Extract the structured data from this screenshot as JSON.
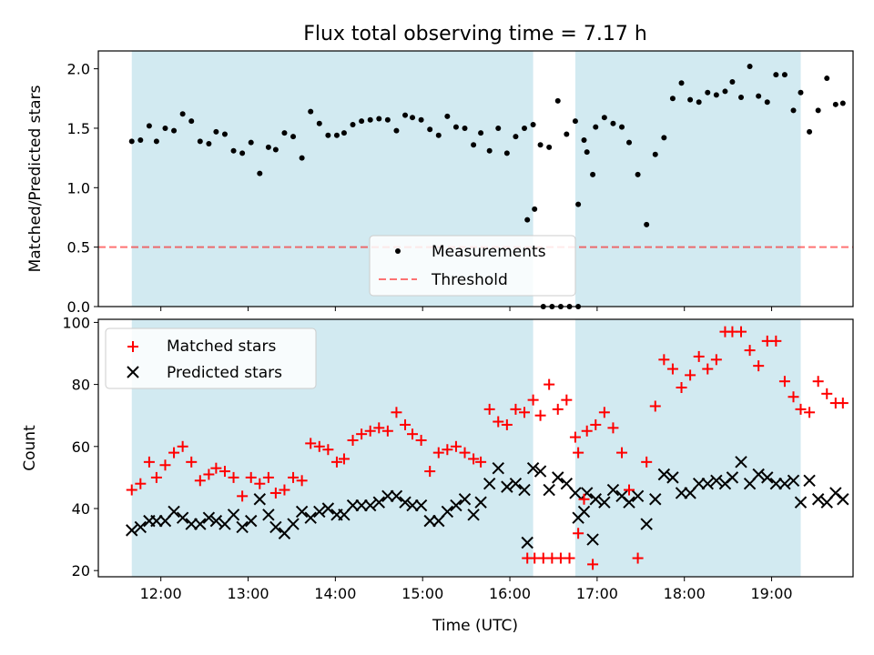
{
  "title": "Flux total observing time = 7.17 h",
  "colors": {
    "shade": "#add8e6",
    "threshold": "#ff0000",
    "measurement": "#000000",
    "matched": "#ff0000",
    "predicted": "#000000"
  },
  "chart_data": [
    {
      "type": "scatter",
      "panel": "top",
      "ylabel": "Matched/Predicted stars",
      "ylim": [
        0,
        2.15
      ],
      "yticks": [
        0.0,
        0.5,
        1.0,
        1.5,
        2.0
      ],
      "ytick_labels": [
        "0.0",
        "0.5",
        "1.0",
        "1.5",
        "2.0"
      ],
      "legend_placement": "lower-center",
      "legend": [
        "Measurements",
        "Threshold"
      ],
      "threshold": 0.5,
      "shaded_intervals": [
        [
          "11:40",
          "16:16"
        ],
        [
          "16:45",
          "19:20"
        ]
      ],
      "series": [
        {
          "name": "Measurements",
          "marker": "dot",
          "points": [
            [
              "11:40",
              1.39
            ],
            [
              "11:46",
              1.4
            ],
            [
              "11:52",
              1.52
            ],
            [
              "11:57",
              1.39
            ],
            [
              "12:03",
              1.5
            ],
            [
              "12:09",
              1.48
            ],
            [
              "12:15",
              1.62
            ],
            [
              "12:21",
              1.56
            ],
            [
              "12:27",
              1.39
            ],
            [
              "12:33",
              1.37
            ],
            [
              "12:38",
              1.47
            ],
            [
              "12:44",
              1.45
            ],
            [
              "12:50",
              1.31
            ],
            [
              "12:56",
              1.29
            ],
            [
              "13:02",
              1.38
            ],
            [
              "13:08",
              1.12
            ],
            [
              "13:14",
              1.34
            ],
            [
              "13:19",
              1.32
            ],
            [
              "13:25",
              1.46
            ],
            [
              "13:31",
              1.43
            ],
            [
              "13:37",
              1.25
            ],
            [
              "13:43",
              1.64
            ],
            [
              "13:49",
              1.54
            ],
            [
              "13:55",
              1.44
            ],
            [
              "14:01",
              1.44
            ],
            [
              "14:06",
              1.46
            ],
            [
              "14:12",
              1.53
            ],
            [
              "14:18",
              1.56
            ],
            [
              "14:24",
              1.57
            ],
            [
              "14:30",
              1.58
            ],
            [
              "14:36",
              1.57
            ],
            [
              "14:42",
              1.48
            ],
            [
              "14:48",
              1.61
            ],
            [
              "14:53",
              1.59
            ],
            [
              "14:59",
              1.57
            ],
            [
              "15:05",
              1.49
            ],
            [
              "15:11",
              1.44
            ],
            [
              "15:17",
              1.6
            ],
            [
              "15:23",
              1.51
            ],
            [
              "15:29",
              1.5
            ],
            [
              "15:35",
              1.36
            ],
            [
              "15:40",
              1.46
            ],
            [
              "15:46",
              1.31
            ],
            [
              "15:52",
              1.5
            ],
            [
              "15:58",
              1.29
            ],
            [
              "16:04",
              1.43
            ],
            [
              "16:10",
              1.5
            ],
            [
              "16:16",
              1.53
            ],
            [
              "16:21",
              1.36
            ],
            [
              "16:27",
              1.34
            ],
            [
              "16:33",
              1.73
            ],
            [
              "16:39",
              1.45
            ],
            [
              "16:45",
              1.56
            ],
            [
              "16:51",
              1.4
            ],
            [
              "16:57",
              1.11
            ],
            [
              "16:12",
              0.73
            ],
            [
              "16:17",
              0.82
            ],
            [
              "16:23",
              0.0
            ],
            [
              "16:29",
              0.0
            ],
            [
              "16:35",
              0.0
            ],
            [
              "16:41",
              0.0
            ],
            [
              "16:47",
              0.0
            ],
            [
              "16:47",
              0.86
            ],
            [
              "16:53",
              1.3
            ],
            [
              "16:59",
              1.51
            ],
            [
              "17:05",
              1.59
            ],
            [
              "17:11",
              1.54
            ],
            [
              "17:17",
              1.51
            ],
            [
              "17:22",
              1.38
            ],
            [
              "17:28",
              1.11
            ],
            [
              "17:34",
              0.69
            ],
            [
              "17:40",
              1.28
            ],
            [
              "17:46",
              1.42
            ],
            [
              "17:52",
              1.75
            ],
            [
              "17:58",
              1.88
            ],
            [
              "18:04",
              1.74
            ],
            [
              "18:10",
              1.72
            ],
            [
              "18:16",
              1.8
            ],
            [
              "18:22",
              1.78
            ],
            [
              "18:28",
              1.81
            ],
            [
              "18:33",
              1.89
            ],
            [
              "18:39",
              1.76
            ],
            [
              "18:45",
              2.02
            ],
            [
              "18:51",
              1.77
            ],
            [
              "18:57",
              1.72
            ],
            [
              "19:03",
              1.95
            ],
            [
              "19:09",
              1.95
            ],
            [
              "19:15",
              1.65
            ],
            [
              "19:20",
              1.8
            ],
            [
              "19:26",
              1.47
            ],
            [
              "19:32",
              1.65
            ],
            [
              "19:38",
              1.92
            ],
            [
              "19:44",
              1.7
            ],
            [
              "19:49",
              1.71
            ]
          ]
        }
      ]
    },
    {
      "type": "scatter",
      "panel": "bottom",
      "xlabel": "Time (UTC)",
      "ylabel": "Count",
      "ylim": [
        18,
        101
      ],
      "yticks": [
        20,
        40,
        60,
        80,
        100
      ],
      "ytick_labels": [
        "20",
        "40",
        "60",
        "80",
        "100"
      ],
      "xticks": [
        "12:00",
        "13:00",
        "14:00",
        "15:00",
        "16:00",
        "17:00",
        "18:00",
        "19:00"
      ],
      "legend_placement": "upper-left",
      "legend": [
        "Matched stars",
        "Predicted stars"
      ],
      "shaded_intervals": [
        [
          "11:40",
          "16:16"
        ],
        [
          "16:45",
          "19:20"
        ]
      ],
      "series": [
        {
          "name": "Matched stars",
          "marker": "plus",
          "points": []
        },
        {
          "name": "Predicted stars",
          "marker": "x",
          "points": []
        }
      ]
    }
  ]
}
